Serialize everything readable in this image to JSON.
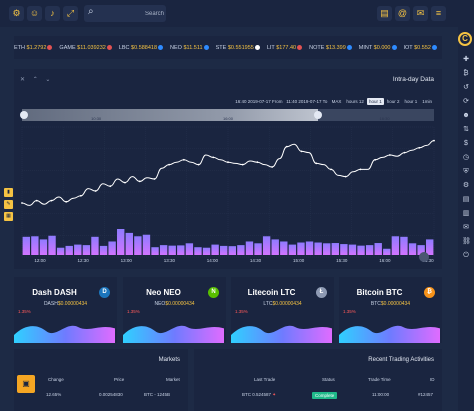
{
  "topbar": {
    "search_placeholder": "Search",
    "left_icons": [
      "settings-icon",
      "user-icon",
      "bell-icon",
      "fullscreen-icon"
    ],
    "right_icons": [
      "clipboard-icon",
      "at-icon",
      "chat-icon",
      "menu-icon"
    ]
  },
  "ticker": [
    {
      "name": "ETH",
      "value": "$1.2792",
      "dot": "#e05252"
    },
    {
      "name": "GAME",
      "value": "$11.039232",
      "dot": "#e05252"
    },
    {
      "name": "LBC",
      "value": "$0.588418",
      "dot": "#2e8bff"
    },
    {
      "name": "NEO",
      "value": "$11.511",
      "dot": "#2e8bff"
    },
    {
      "name": "STE",
      "value": "$0.551955",
      "dot": "#ffffff"
    },
    {
      "name": "LIT",
      "value": "$177.40",
      "dot": "#e05252"
    },
    {
      "name": "NOTE",
      "value": "$13.399",
      "dot": "#2e8bff"
    },
    {
      "name": "MINT",
      "value": "$0.000",
      "dot": "#2e8bff"
    },
    {
      "name": "IOT",
      "value": "$0.552",
      "dot": "#2e8bff"
    }
  ],
  "intraday": {
    "title": "Intra-day Data",
    "date_from": "16:40 2019-07-17",
    "date_from_suffix": "From",
    "date_to": "11:40 2019-07-17",
    "date_to_suffix": "To",
    "ranges": [
      "MAX",
      "hours 12",
      "hour 1",
      "hour 2",
      "hour 1",
      "1min"
    ],
    "active_range": 2,
    "navigator_labels": [
      "10:30",
      "16:00",
      "16:30"
    ],
    "x_labels": [
      "12:00",
      "12:30",
      "13:00",
      "13:30",
      "14:00",
      "14:30",
      "15:00",
      "15:30",
      "16:00",
      "16:30"
    ],
    "price_line": [
      50,
      48,
      52,
      49,
      52,
      55,
      51,
      54,
      56,
      62,
      60,
      66,
      64,
      70,
      67,
      72,
      68,
      71,
      70,
      79,
      82,
      84,
      86,
      84,
      82,
      90,
      88,
      86,
      84,
      83,
      82,
      85,
      84,
      82,
      80,
      87,
      97,
      99,
      93,
      92,
      83,
      82,
      78,
      73,
      72,
      76,
      78,
      78,
      86,
      88,
      90,
      89,
      92,
      94,
      96,
      98,
      102
    ],
    "volume_bars": [
      70,
      72,
      60,
      74,
      28,
      35,
      40,
      38,
      70,
      35,
      52,
      100,
      85,
      72,
      78,
      30,
      38,
      36,
      37,
      45,
      30,
      28,
      40,
      35,
      34,
      38,
      52,
      45,
      72,
      60,
      52,
      40,
      48,
      52,
      48,
      45,
      46,
      42,
      40,
      36,
      38,
      46,
      24,
      72,
      70,
      45,
      38,
      60
    ],
    "colors": {
      "line": "#ffffff",
      "bar_top": "#8f7bff",
      "bar_bottom": "#d274ff"
    }
  },
  "cards": [
    {
      "title": "Dash DASH",
      "symbol": "DASH",
      "price": "$0.00000434",
      "change": "1.35%",
      "icon": "dash-icon",
      "icon_glyph": "D",
      "icon_color": "#1c75bc"
    },
    {
      "title": "Neo NEO",
      "symbol": "NEO",
      "price": "$0.00000434",
      "change": "1.35%",
      "icon": "neo-icon",
      "icon_glyph": "N",
      "icon_color": "#58bf00"
    },
    {
      "title": "Litecoin LTC",
      "symbol": "LTC",
      "price": "$0.00000434",
      "change": "1.35%",
      "icon": "litecoin-icon",
      "icon_glyph": "Ł",
      "icon_color": "#8e9ab3"
    },
    {
      "title": "Bitcoin BTC",
      "symbol": "BTC",
      "price": "$0.00000434",
      "change": "1.35%",
      "icon": "bitcoin-icon",
      "icon_glyph": "₿",
      "icon_color": "#f7931a"
    }
  ],
  "markets": {
    "title": "Markets",
    "headers": {
      "change": "Change",
      "price": "Price",
      "market": "Market"
    },
    "row": {
      "change": "12.65%",
      "price": "0.00254830",
      "market": "BTC - 1245B"
    }
  },
  "activities": {
    "title": "Recent Trading Activities",
    "headers": {
      "last_trade": "Last Trade",
      "status": "Status",
      "trade_time": "Trade Time",
      "id": "ID"
    },
    "row": {
      "last_trade": "BTC 0.524587",
      "status": "Complete",
      "trade_time": "11:00:00",
      "id": "#12457"
    }
  }
}
